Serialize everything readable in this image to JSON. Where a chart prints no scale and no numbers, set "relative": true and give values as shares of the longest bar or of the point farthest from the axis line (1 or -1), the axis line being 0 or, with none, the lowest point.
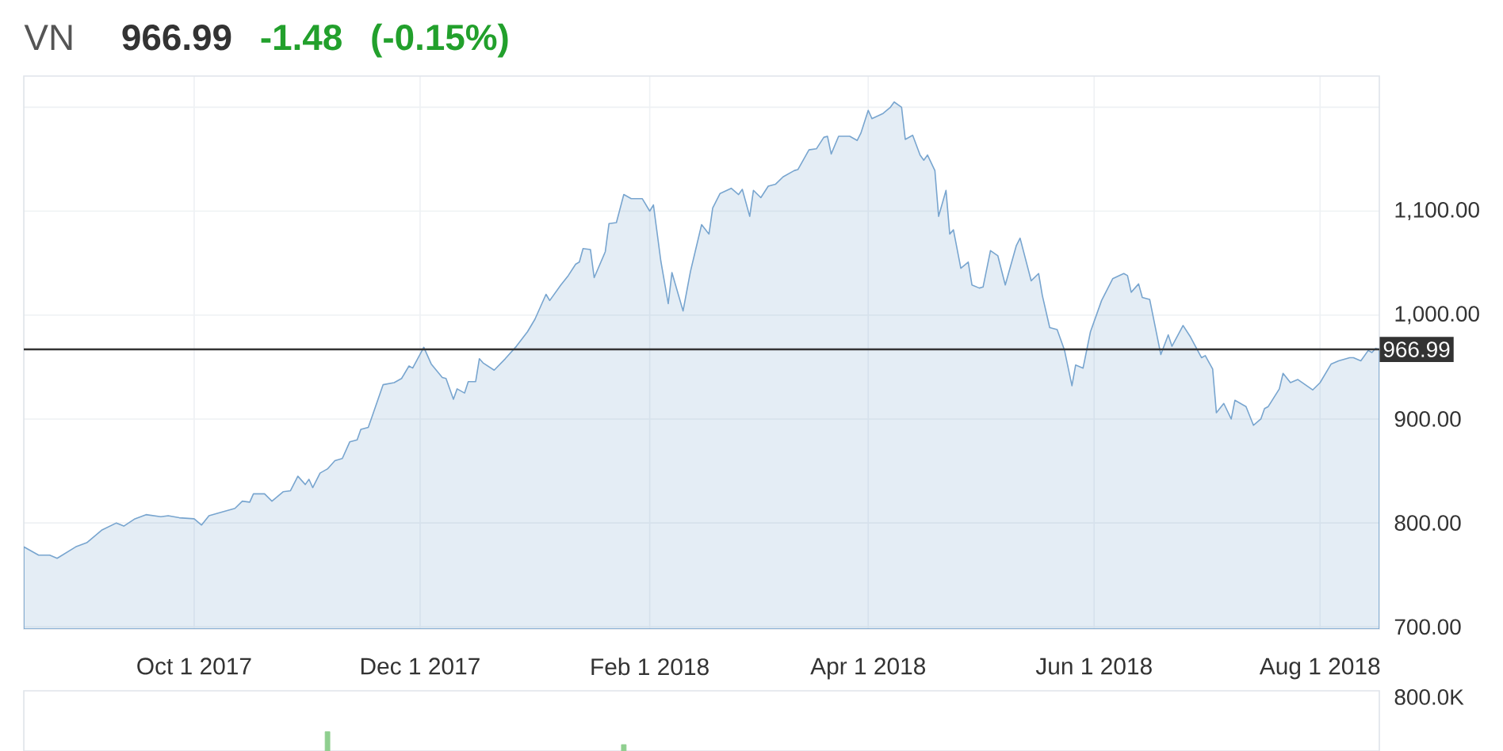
{
  "chart_data": [
    {
      "type": "area",
      "title": "VN",
      "subtitle": "966.99",
      "annotations": [
        "-1.48",
        "(-0.15%)"
      ],
      "color": "#78a5cf",
      "x": [
        "2017-08-16",
        "2017-08-18",
        "2017-08-20",
        "2017-08-23",
        "2017-08-25",
        "2017-08-30",
        "2017-09-02",
        "2017-09-06",
        "2017-09-10",
        "2017-09-12",
        "2017-09-15",
        "2017-09-18",
        "2017-09-22",
        "2017-09-24",
        "2017-09-27",
        "2017-10-01",
        "2017-10-03",
        "2017-10-05",
        "2017-10-08",
        "2017-10-12",
        "2017-10-14",
        "2017-10-16",
        "2017-10-17",
        "2017-10-20",
        "2017-10-22",
        "2017-10-25",
        "2017-10-27",
        "2017-10-29",
        "2017-10-31",
        "2017-11-01",
        "2017-11-02",
        "2017-11-04",
        "2017-11-06",
        "2017-11-08",
        "2017-11-10",
        "2017-11-12",
        "2017-11-14",
        "2017-11-15",
        "2017-11-17",
        "2017-11-18",
        "2017-11-21",
        "2017-11-24",
        "2017-11-26",
        "2017-11-28",
        "2017-11-29",
        "2017-12-02",
        "2017-12-04",
        "2017-12-07",
        "2017-12-08",
        "2017-12-10",
        "2017-12-11",
        "2017-12-13",
        "2017-12-14",
        "2017-12-16",
        "2017-12-17",
        "2017-12-18",
        "2017-12-21",
        "2017-12-24",
        "2017-12-27",
        "2017-12-30",
        "2018-01-01",
        "2018-01-04",
        "2018-01-05",
        "2018-01-08",
        "2018-01-10",
        "2018-01-12",
        "2018-01-13",
        "2018-01-14",
        "2018-01-16",
        "2018-01-17",
        "2018-01-20",
        "2018-01-21",
        "2018-01-23",
        "2018-01-25",
        "2018-01-27",
        "2018-01-30",
        "2018-02-01",
        "2018-02-02",
        "2018-02-04",
        "2018-02-06",
        "2018-02-07",
        "2018-02-10",
        "2018-02-12",
        "2018-02-13",
        "2018-02-15",
        "2018-02-17",
        "2018-02-18",
        "2018-02-20",
        "2018-02-23",
        "2018-02-25",
        "2018-02-26",
        "2018-02-28",
        "2018-03-01",
        "2018-03-03",
        "2018-03-05",
        "2018-03-07",
        "2018-03-09",
        "2018-03-12",
        "2018-03-13",
        "2018-03-16",
        "2018-03-18",
        "2018-03-20",
        "2018-03-21",
        "2018-03-22",
        "2018-03-24",
        "2018-03-27",
        "2018-03-29",
        "2018-03-30",
        "2018-04-01",
        "2018-04-02",
        "2018-04-05",
        "2018-04-07",
        "2018-04-08",
        "2018-04-10",
        "2018-04-11",
        "2018-04-13",
        "2018-04-15",
        "2018-04-16",
        "2018-04-17",
        "2018-04-19",
        "2018-04-20",
        "2018-04-22",
        "2018-04-23",
        "2018-04-24",
        "2018-04-26",
        "2018-04-28",
        "2018-04-29",
        "2018-05-01",
        "2018-05-02",
        "2018-05-04",
        "2018-05-06",
        "2018-05-08",
        "2018-05-11",
        "2018-05-12",
        "2018-05-15",
        "2018-05-17",
        "2018-05-18",
        "2018-05-20",
        "2018-05-22",
        "2018-05-24",
        "2018-05-26",
        "2018-05-27",
        "2018-05-29",
        "2018-05-31",
        "2018-06-03",
        "2018-06-06",
        "2018-06-09",
        "2018-06-10",
        "2018-06-11",
        "2018-06-13",
        "2018-06-14",
        "2018-06-16",
        "2018-06-19",
        "2018-06-21",
        "2018-06-22",
        "2018-06-25",
        "2018-06-27",
        "2018-06-30",
        "2018-07-01",
        "2018-07-03",
        "2018-07-04",
        "2018-07-06",
        "2018-07-08",
        "2018-07-09",
        "2018-07-12",
        "2018-07-14",
        "2018-07-16",
        "2018-07-17",
        "2018-07-18",
        "2018-07-21",
        "2018-07-22",
        "2018-07-24",
        "2018-07-26",
        "2018-07-30",
        "2018-08-01",
        "2018-08-04",
        "2018-08-06",
        "2018-08-09",
        "2018-08-10",
        "2018-08-12",
        "2018-08-14",
        "2018-08-15",
        "2018-08-16",
        "2018-08-17"
      ],
      "values": [
        777,
        773,
        769,
        769,
        766,
        777,
        781,
        793,
        800,
        797,
        804,
        808,
        806,
        807,
        805,
        804,
        798,
        807,
        810,
        814,
        821,
        820,
        828,
        828,
        821,
        830,
        831,
        845,
        837,
        842,
        834,
        848,
        852,
        860,
        862,
        878,
        880,
        890,
        892,
        902,
        933,
        935,
        939,
        951,
        949,
        969,
        953,
        940,
        939,
        919,
        929,
        925,
        936,
        936,
        958,
        954,
        947,
        958,
        970,
        984,
        996,
        1020,
        1014,
        1029,
        1038,
        1049,
        1051,
        1064,
        1063,
        1036,
        1061,
        1088,
        1089,
        1116,
        1112,
        1112,
        1100,
        1106,
        1052,
        1011,
        1041,
        1004,
        1042,
        1057,
        1087,
        1078,
        1103,
        1117,
        1122,
        1116,
        1121,
        1095,
        1120,
        1113,
        1124,
        1126,
        1133,
        1139,
        1140,
        1159,
        1160,
        1171,
        1172,
        1155,
        1172,
        1172,
        1168,
        1175,
        1197,
        1189,
        1194,
        1200,
        1205,
        1200,
        1169,
        1173,
        1154,
        1149,
        1154,
        1139,
        1095,
        1120,
        1078,
        1082,
        1045,
        1051,
        1029,
        1026,
        1027,
        1062,
        1057,
        1029,
        1067,
        1074,
        1033,
        1040,
        1019,
        988,
        986,
        966,
        932,
        952,
        949,
        984,
        1014,
        1035,
        1040,
        1038,
        1022,
        1030,
        1017,
        1015,
        962,
        981,
        970,
        990,
        979,
        959,
        961,
        948,
        906,
        915,
        900,
        918,
        912,
        894,
        900,
        910,
        912,
        929,
        944,
        935,
        938,
        928,
        935,
        953,
        956,
        959,
        959,
        956,
        966,
        964,
        968,
        967
      ],
      "xlim": [
        "2017-08-16",
        "2018-08-17"
      ],
      "xticks": [
        {
          "value": "2017-10-01",
          "label": "Oct 1 2017"
        },
        {
          "value": "2017-12-01",
          "label": "Dec 1 2017"
        },
        {
          "value": "2018-02-01",
          "label": "Feb 1 2018"
        },
        {
          "value": "2018-04-01",
          "label": "Apr 1 2018"
        },
        {
          "value": "2018-06-01",
          "label": "Jun 1 2018"
        },
        {
          "value": "2018-08-01",
          "label": "Aug 1 2018"
        }
      ],
      "ylim": [
        698,
        1230
      ],
      "yticks": [
        {
          "value": 700,
          "label": "700.00"
        },
        {
          "value": 800,
          "label": "800.00"
        },
        {
          "value": 900,
          "label": "900.00"
        },
        {
          "value": 1000,
          "label": "1,000.00"
        },
        {
          "value": 1100,
          "label": "1,100.00"
        },
        {
          "value": 1200,
          "label": null
        }
      ],
      "grid": true,
      "ref_lines": [
        {
          "axis": "y",
          "value": 966.99,
          "label": "966.99",
          "color": "#333333"
        }
      ]
    },
    {
      "type": "bar",
      "relative": true,
      "color": "#8fcf8f",
      "x": [
        "2017-11-06",
        "2018-01-25"
      ],
      "values": [
        1,
        0.33
      ],
      "xlim": [
        "2017-08-16",
        "2018-08-17"
      ],
      "tick_labels": false,
      "annotations": [
        "800.0K"
      ]
    }
  ]
}
